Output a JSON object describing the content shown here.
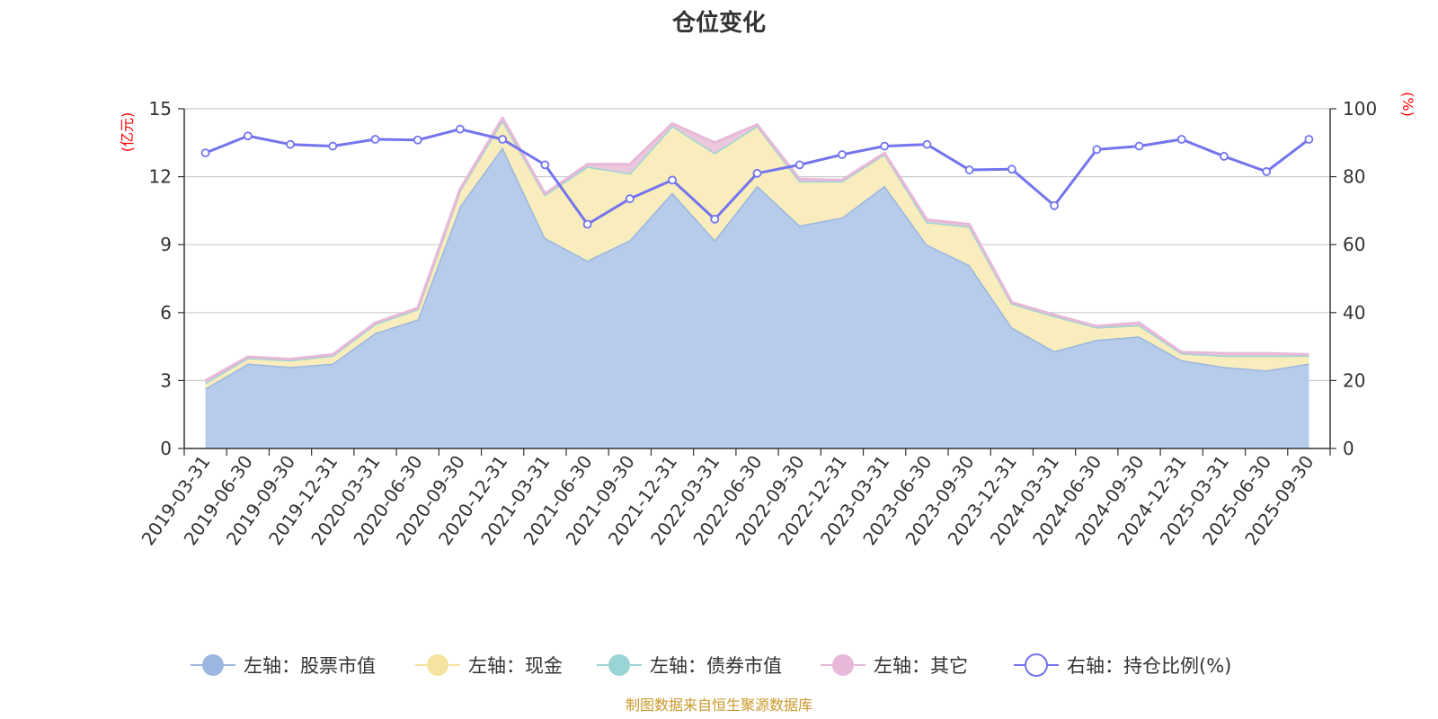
{
  "chart_data": {
    "type": "area",
    "title": "仓位变化",
    "left_axis_unit": "(亿元)",
    "right_axis_unit": "(%)",
    "left_ylim": [
      0,
      15
    ],
    "left_yticks": [
      "0",
      "3",
      "6",
      "9",
      "12",
      "15"
    ],
    "right_ylim": [
      0,
      100
    ],
    "right_yticks": [
      "0",
      "20",
      "40",
      "60",
      "80",
      "100"
    ],
    "grid": true,
    "legend_position": "bottom",
    "categories": [
      "2019-03-31",
      "2019-06-30",
      "2019-09-30",
      "2019-12-31",
      "2020-03-31",
      "2020-06-30",
      "2020-09-30",
      "2020-12-31",
      "2021-03-31",
      "2021-06-30",
      "2021-09-30",
      "2021-12-31",
      "2022-03-31",
      "2022-06-30",
      "2022-09-30",
      "2022-12-31",
      "2023-03-31",
      "2023-06-30",
      "2023-09-30",
      "2023-12-31",
      "2024-03-31",
      "2024-06-30",
      "2024-09-30",
      "2024-12-31",
      "2025-03-31",
      "2025-06-30",
      "2025-09-30"
    ],
    "series": [
      {
        "name": "左轴：股票市值",
        "axis": "left",
        "kind": "area",
        "color": "#9bb7e0",
        "fill": "#b7cbea",
        "values": [
          2.65,
          3.75,
          3.6,
          3.75,
          5.1,
          5.7,
          10.7,
          13.3,
          9.3,
          8.3,
          9.2,
          11.3,
          9.2,
          11.6,
          9.85,
          10.2,
          11.6,
          9.0,
          8.1,
          5.35,
          4.3,
          4.8,
          4.95,
          3.9,
          3.6,
          3.45,
          3.75
        ]
      },
      {
        "name": "左轴：现金",
        "axis": "left",
        "kind": "area",
        "color": "#f5e3a0",
        "fill": "#f9edbd",
        "values": [
          0.25,
          0.25,
          0.3,
          0.35,
          0.4,
          0.45,
          0.7,
          1.2,
          1.9,
          4.15,
          2.95,
          2.95,
          3.85,
          2.65,
          1.95,
          1.6,
          1.4,
          1.0,
          1.7,
          1.05,
          1.55,
          0.55,
          0.5,
          0.3,
          0.5,
          0.65,
          0.35
        ]
      },
      {
        "name": "左轴：债券市值",
        "axis": "left",
        "kind": "area",
        "color": "#9bd4d4",
        "fill": "#b4dfe0",
        "values": [
          0,
          0,
          0,
          0,
          0,
          0,
          0,
          0,
          0,
          0,
          0,
          0,
          0,
          0,
          0,
          0,
          0,
          0,
          0,
          0,
          0,
          0,
          0,
          0,
          0,
          0,
          0
        ]
      },
      {
        "name": "左轴：其它",
        "axis": "left",
        "kind": "area",
        "color": "#e8b8d8",
        "fill": "#ecc8de",
        "values": [
          0.1,
          0.05,
          0.05,
          0.05,
          0.05,
          0.05,
          0.05,
          0.1,
          0.05,
          0.1,
          0.4,
          0.1,
          0.45,
          0.05,
          0.1,
          0.05,
          0.05,
          0.1,
          0.1,
          0.05,
          0.05,
          0.05,
          0.1,
          0.05,
          0.1,
          0.1,
          0.05
        ]
      },
      {
        "name": "右轴：持仓比例(%)",
        "axis": "right",
        "kind": "line",
        "color": "#7474ee",
        "values": [
          87,
          92,
          89.5,
          89,
          91,
          90.8,
          94,
          91,
          83.5,
          66,
          73.5,
          79,
          67.5,
          81,
          83.5,
          86.5,
          89,
          89.5,
          82,
          82.2,
          71.5,
          88,
          89,
          91,
          86,
          81.5,
          91
        ]
      }
    ],
    "source": "制图数据来自恒生聚源数据库"
  }
}
